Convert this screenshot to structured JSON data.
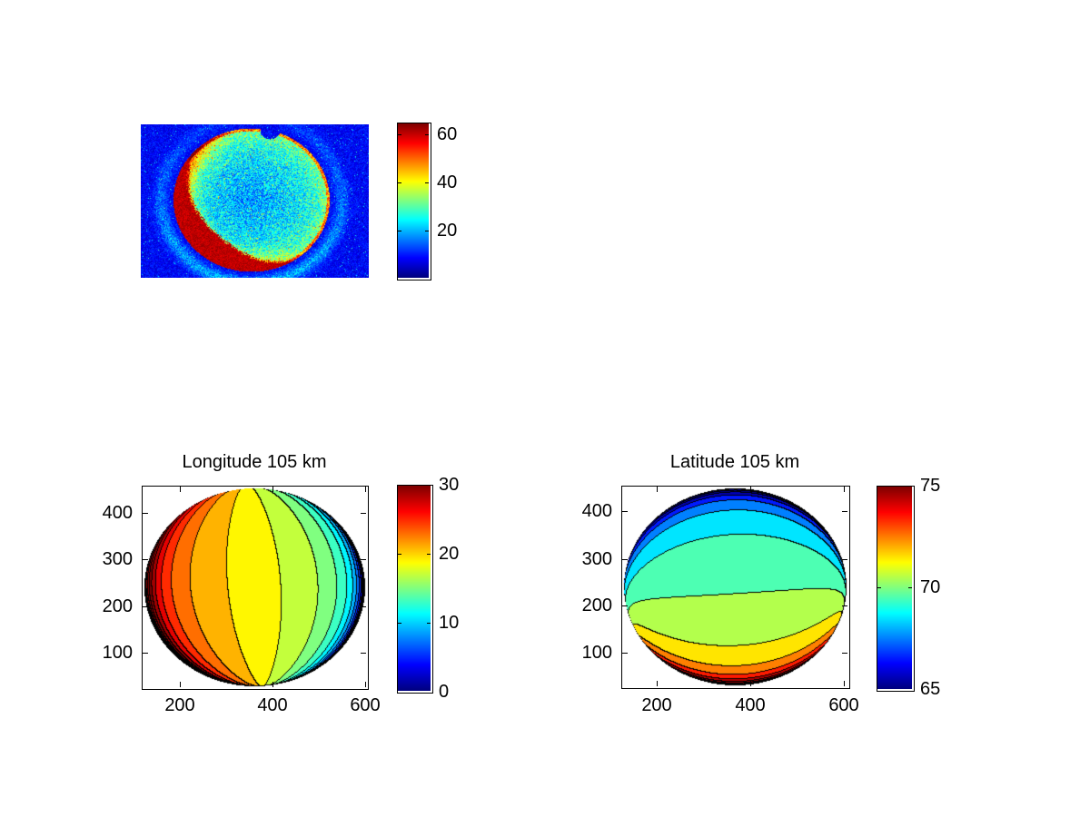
{
  "figure": {
    "background": "#ffffff",
    "colormap": "jet"
  },
  "chart_data": [
    {
      "id": "crater_image",
      "type": "heatmap",
      "title": "",
      "colormap": "jet",
      "colorbar": {
        "range": [
          0,
          65
        ],
        "ticks": [
          20,
          40,
          60
        ]
      },
      "description": "Noisy jet-colormap image of a circular planetary disk on a dark blue background; speckled cyan/green interior, warm orange-red rim strongest toward lower left, solid dark-red crescent along the bottom, small notch bitten into the upper-right rim, faint lighter-blue halo ring around the disk",
      "render": {
        "seed": 7,
        "disk_cx": 121.5,
        "disk_cy": 83,
        "disk_rx": 86,
        "disk_ry": 79,
        "notch": {
          "dx": 20.5,
          "dy": -77,
          "r": 11
        },
        "crescent": {
          "start_deg": 60,
          "end_deg": 215,
          "depth": 0.33,
          "value": 58
        }
      }
    },
    {
      "id": "longitude_map",
      "type": "contourf",
      "title": "Longitude 105 km",
      "field": "longitude",
      "colormap": "jet",
      "x_ticks": [
        200,
        400,
        600
      ],
      "y_ticks": [
        100,
        200,
        300,
        400
      ],
      "colorbar": {
        "range": [
          0,
          30
        ],
        "ticks": [
          0,
          10,
          20,
          30
        ]
      },
      "contour_step_deg": 2,
      "view": {
        "center_latitude_deg": 69.9,
        "center_longitude_deg": 19,
        "altitude_km": 105,
        "planet_radius_km": 6052,
        "roll_deg": 4
      }
    },
    {
      "id": "latitude_map",
      "type": "contourf",
      "title": "Latitude 105 km",
      "field": "latitude",
      "colormap": "jet",
      "x_ticks": [
        200,
        400,
        600
      ],
      "y_ticks": [
        100,
        200,
        300,
        400
      ],
      "colorbar": {
        "range": [
          65,
          75
        ],
        "ticks": [
          65,
          70,
          75
        ]
      },
      "contour_step_deg": 1,
      "view": {
        "center_latitude_deg": 69.9,
        "center_longitude_deg": 19,
        "altitude_km": 105,
        "planet_radius_km": 6052,
        "roll_deg": 4
      }
    }
  ]
}
